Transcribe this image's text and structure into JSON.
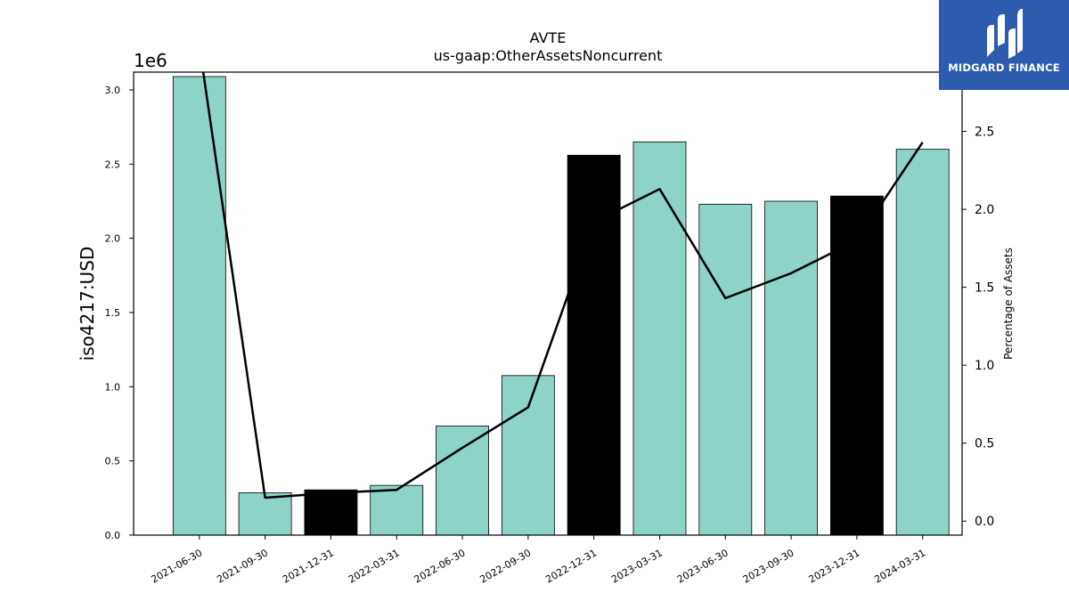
{
  "chart_data": {
    "type": "bar",
    "title": "AVTE",
    "subtitle": "us-gaap:OtherAssetsNoncurrent",
    "ylabel": "iso4217:USD",
    "y_offset_label": "1e6",
    "y2label": "Percentage of Assets",
    "ylim": [
      0,
      3120000
    ],
    "y2lim": [
      -0.09,
      2.88
    ],
    "yticks": [
      "0.0",
      "0.5",
      "1.0",
      "1.5",
      "2.0",
      "2.5",
      "3.0"
    ],
    "y2ticks": [
      "0.0",
      "0.5",
      "1.0",
      "1.5",
      "2.0",
      "2.5"
    ],
    "categories": [
      "2021-06-30",
      "2021-09-30",
      "2021-12-31",
      "2022-03-31",
      "2022-06-30",
      "2022-09-30",
      "2022-12-31",
      "2023-03-31",
      "2023-06-30",
      "2023-09-30",
      "2023-12-31",
      "2024-03-31"
    ],
    "series": [
      {
        "values": [
          3090000,
          285000,
          305000,
          335000,
          735000,
          1075000,
          2560000,
          2650000,
          2230000,
          2250000,
          2285000,
          2600000
        ],
        "colors": [
          "#8dd3c7",
          "#8dd3c7",
          "#000000",
          "#8dd3c7",
          "#8dd3c7",
          "#8dd3c7",
          "#000000",
          "#8dd3c7",
          "#8dd3c7",
          "#8dd3c7",
          "#000000",
          "#8dd3c7"
        ]
      },
      {
        "type": "line",
        "axis": "right",
        "color": "#000000",
        "values": [
          3.05,
          0.15,
          0.18,
          0.2,
          0.47,
          0.73,
          1.92,
          2.13,
          1.43,
          1.59,
          1.8,
          2.43
        ]
      }
    ],
    "grid": false
  },
  "logo": {
    "text": "MIDGARD FINANCE",
    "bg_color": "#2d5bad"
  }
}
